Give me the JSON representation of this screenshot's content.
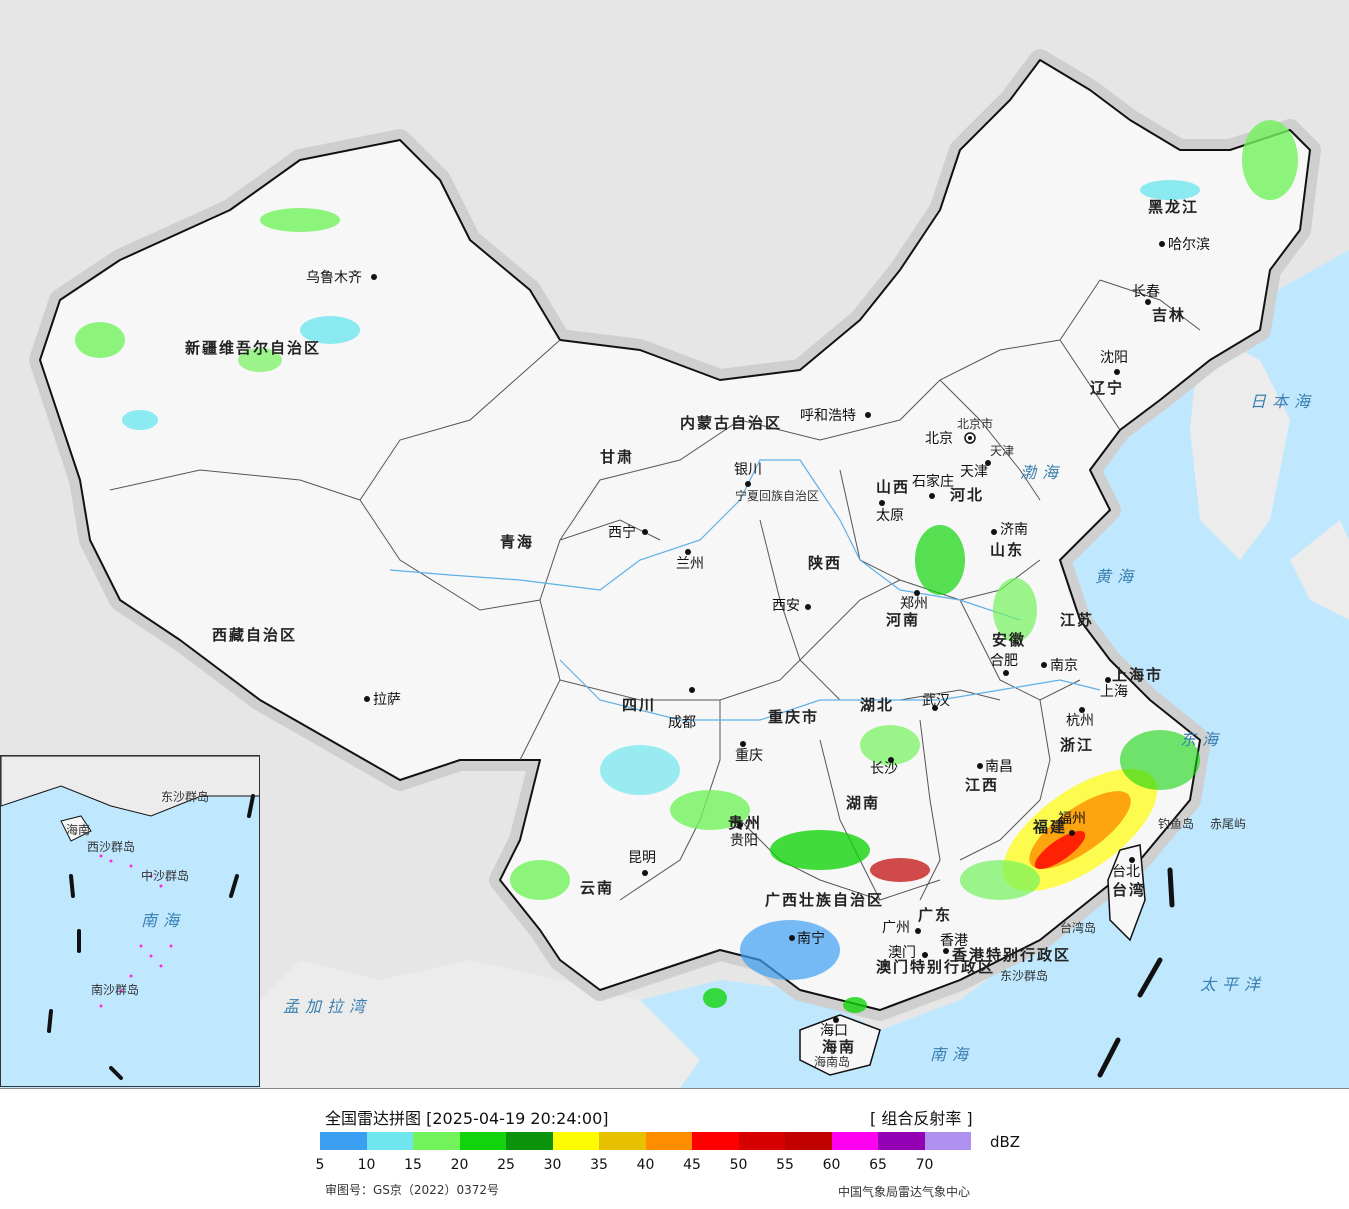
{
  "legend": {
    "title": "全国雷达拼图 [2025-04-19 20:24:00]",
    "product": "[ 组合反射率 ]",
    "unit": "dBZ",
    "colors": [
      "#3d9ff2",
      "#6fe6ee",
      "#72f25b",
      "#13d40c",
      "#0c930c",
      "#fdfc05",
      "#e7c000",
      "#fe8e00",
      "#ff0000",
      "#d70000",
      "#c10000",
      "#ff00f0",
      "#9400b4",
      "#ad90f0"
    ],
    "ticks": [
      "5",
      "10",
      "15",
      "20",
      "25",
      "30",
      "35",
      "40",
      "45",
      "50",
      "55",
      "60",
      "65",
      "70"
    ],
    "approval": "审图号：GS京（2022）0372号",
    "credit": "中国气象局雷达气象中心"
  },
  "provinces": [
    {
      "name": "新疆维吾尔自治区"
    },
    {
      "name": "西藏自治区"
    },
    {
      "name": "青海"
    },
    {
      "name": "甘肃"
    },
    {
      "name": "内蒙古自治区"
    },
    {
      "name": "黑龙江"
    },
    {
      "name": "吉林"
    },
    {
      "name": "辽宁"
    },
    {
      "name": "河北"
    },
    {
      "name": "山西"
    },
    {
      "name": "山东"
    },
    {
      "name": "河南"
    },
    {
      "name": "陕西"
    },
    {
      "name": "江苏"
    },
    {
      "name": "安徽"
    },
    {
      "name": "湖北"
    },
    {
      "name": "四川"
    },
    {
      "name": "重庆市"
    },
    {
      "name": "浙江"
    },
    {
      "name": "江西"
    },
    {
      "name": "湖南"
    },
    {
      "name": "贵州"
    },
    {
      "name": "云南"
    },
    {
      "name": "福建"
    },
    {
      "name": "广西壮族自治区"
    },
    {
      "name": "广东"
    },
    {
      "name": "海南"
    },
    {
      "name": "台湾"
    },
    {
      "name": "宁夏回族自治区"
    },
    {
      "name": "上海市"
    },
    {
      "name": "北京市"
    },
    {
      "name": "天津"
    },
    {
      "name": "香港特别行政区"
    },
    {
      "name": "澳门特别行政区"
    }
  ],
  "cities": [
    {
      "name": "乌鲁木齐"
    },
    {
      "name": "拉萨"
    },
    {
      "name": "西宁"
    },
    {
      "name": "兰州"
    },
    {
      "name": "银川"
    },
    {
      "name": "呼和浩特"
    },
    {
      "name": "哈尔滨"
    },
    {
      "name": "长春"
    },
    {
      "name": "沈阳"
    },
    {
      "name": "北京"
    },
    {
      "name": "天津"
    },
    {
      "name": "石家庄"
    },
    {
      "name": "太原"
    },
    {
      "name": "济南"
    },
    {
      "name": "郑州"
    },
    {
      "name": "西安"
    },
    {
      "name": "合肥"
    },
    {
      "name": "南京"
    },
    {
      "name": "上海"
    },
    {
      "name": "杭州"
    },
    {
      "name": "武汉"
    },
    {
      "name": "成都"
    },
    {
      "name": "重庆"
    },
    {
      "name": "长沙"
    },
    {
      "name": "南昌"
    },
    {
      "name": "贵阳"
    },
    {
      "name": "昆明"
    },
    {
      "name": "福州"
    },
    {
      "name": "台北"
    },
    {
      "name": "南宁"
    },
    {
      "name": "广州"
    },
    {
      "name": "澳门"
    },
    {
      "name": "香港"
    },
    {
      "name": "海口"
    }
  ],
  "seas": [
    {
      "name": "日本海"
    },
    {
      "name": "渤海"
    },
    {
      "name": "黄海"
    },
    {
      "name": "东海"
    },
    {
      "name": "太平洋"
    },
    {
      "name": "南海"
    },
    {
      "name": "孟加拉湾"
    }
  ],
  "islands": [
    {
      "name": "钓鱼岛"
    },
    {
      "name": "赤尾屿"
    },
    {
      "name": "台湾岛"
    },
    {
      "name": "东沙群岛"
    },
    {
      "name": "海南岛"
    }
  ],
  "inset_labels": [
    {
      "name": "海南"
    },
    {
      "name": "南海"
    },
    {
      "name": "西沙群岛"
    },
    {
      "name": "中沙群岛"
    },
    {
      "name": "南沙群岛"
    },
    {
      "name": "东沙群岛"
    }
  ]
}
